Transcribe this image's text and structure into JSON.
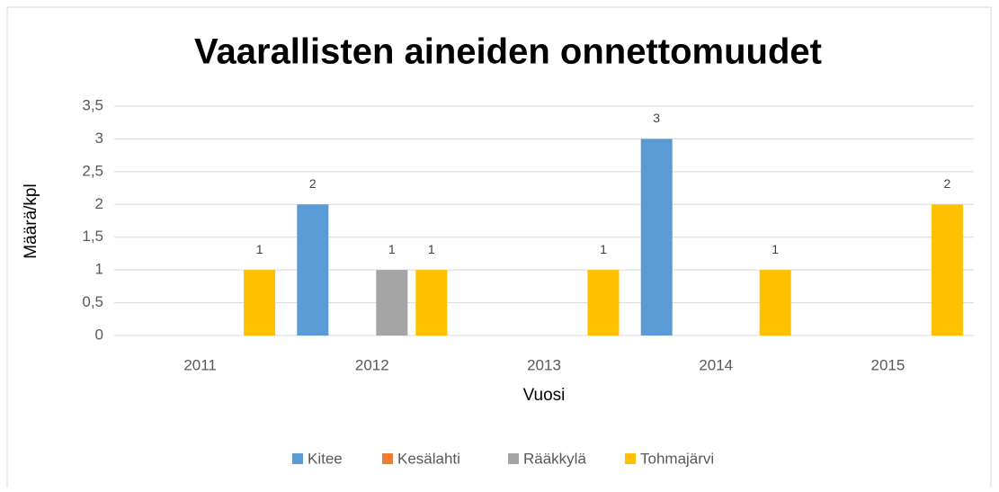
{
  "chart_data": {
    "type": "bar",
    "title": "Vaarallisten aineiden onnettomuudet",
    "x_label": "Vuosi",
    "y_label": "Määrä/kpl",
    "categories": [
      "2011",
      "2012",
      "2013",
      "2014",
      "2015"
    ],
    "series": [
      {
        "name": "Kitee",
        "color": "#5b9bd5",
        "values": [
          null,
          2,
          null,
          3,
          null
        ]
      },
      {
        "name": "Kesälahti",
        "color": "#ed7d31",
        "values": [
          null,
          null,
          null,
          null,
          null
        ]
      },
      {
        "name": "Rääkkylä",
        "color": "#a5a5a5",
        "values": [
          null,
          1,
          null,
          null,
          null
        ]
      },
      {
        "name": "Tohmajärvi",
        "color": "#ffc000",
        "values": [
          1,
          1,
          1,
          1,
          2
        ]
      }
    ],
    "ylim": [
      0,
      3.5
    ],
    "yticks": [
      0,
      {
        "value": 0.5,
        "label": "0,5"
      },
      1,
      {
        "value": 1.5,
        "label": "1,5"
      },
      2,
      {
        "value": 2.5,
        "label": "2,5"
      },
      3,
      {
        "value": 3.5,
        "label": "3,5"
      }
    ],
    "grid": true,
    "legend": "bottom"
  }
}
